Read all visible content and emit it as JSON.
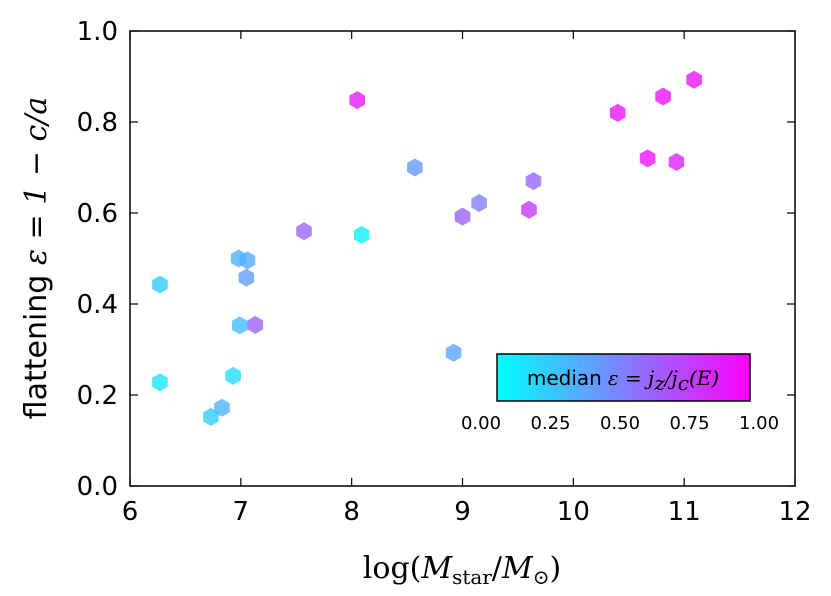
{
  "chart_data": {
    "type": "scatter",
    "marker": "hexagon",
    "xlabel": "log(M_star/M_⊙)",
    "xlabel_parts": {
      "pre": "log(",
      "M": "M",
      "star": "star",
      "slash": "/",
      "M2": "M",
      "sun": "⊙",
      "post": ")"
    },
    "ylabel": "flattening ε = 1 − c/a",
    "ylabel_parts": {
      "word": "flattening ",
      "math": "ε = 1 − c/a"
    },
    "xlim": [
      6,
      12
    ],
    "ylim": [
      0.0,
      1.0
    ],
    "xticks": [
      6,
      7,
      8,
      9,
      10,
      11,
      12
    ],
    "xtick_labels": [
      "6",
      "7",
      "8",
      "9",
      "10",
      "11",
      "12"
    ],
    "yticks": [
      0.0,
      0.2,
      0.4,
      0.6,
      0.8,
      1.0
    ],
    "ytick_labels": [
      "0.0",
      "0.2",
      "0.4",
      "0.6",
      "0.8",
      "1.0"
    ],
    "colorbar": {
      "label_text": "median",
      "label_math": "ε = j_z / j_c(E)",
      "label_math_parts": {
        "eps": "ε = j",
        "z": "z",
        "slash": "/j",
        "c": "c",
        "tail": "(E)"
      },
      "range": [
        0.0,
        1.0
      ],
      "ticks": [
        "0.00",
        "0.25",
        "0.50",
        "0.75",
        "1.00"
      ],
      "colormap": "cool",
      "color_low": "#00ffff",
      "color_high": "#ff00ff"
    },
    "points": [
      {
        "x": 6.27,
        "y": 0.443,
        "c": 0.2
      },
      {
        "x": 6.27,
        "y": 0.228,
        "c": 0.1
      },
      {
        "x": 6.73,
        "y": 0.152,
        "c": 0.2
      },
      {
        "x": 6.83,
        "y": 0.172,
        "c": 0.3
      },
      {
        "x": 6.93,
        "y": 0.242,
        "c": 0.12
      },
      {
        "x": 6.98,
        "y": 0.5,
        "c": 0.3
      },
      {
        "x": 6.99,
        "y": 0.353,
        "c": 0.25
      },
      {
        "x": 7.06,
        "y": 0.496,
        "c": 0.32
      },
      {
        "x": 7.05,
        "y": 0.458,
        "c": 0.38
      },
      {
        "x": 7.13,
        "y": 0.354,
        "c": 0.62
      },
      {
        "x": 7.57,
        "y": 0.56,
        "c": 0.6
      },
      {
        "x": 8.05,
        "y": 0.848,
        "c": 0.9
      },
      {
        "x": 8.09,
        "y": 0.552,
        "c": 0.05
      },
      {
        "x": 8.57,
        "y": 0.7,
        "c": 0.4
      },
      {
        "x": 8.92,
        "y": 0.293,
        "c": 0.35
      },
      {
        "x": 9.0,
        "y": 0.592,
        "c": 0.62
      },
      {
        "x": 9.15,
        "y": 0.622,
        "c": 0.5
      },
      {
        "x": 9.6,
        "y": 0.607,
        "c": 0.78
      },
      {
        "x": 9.64,
        "y": 0.67,
        "c": 0.6
      },
      {
        "x": 10.4,
        "y": 0.82,
        "c": 0.92
      },
      {
        "x": 10.67,
        "y": 0.72,
        "c": 0.92
      },
      {
        "x": 10.81,
        "y": 0.856,
        "c": 0.92
      },
      {
        "x": 10.93,
        "y": 0.712,
        "c": 0.85
      },
      {
        "x": 11.09,
        "y": 0.893,
        "c": 0.92
      }
    ]
  }
}
